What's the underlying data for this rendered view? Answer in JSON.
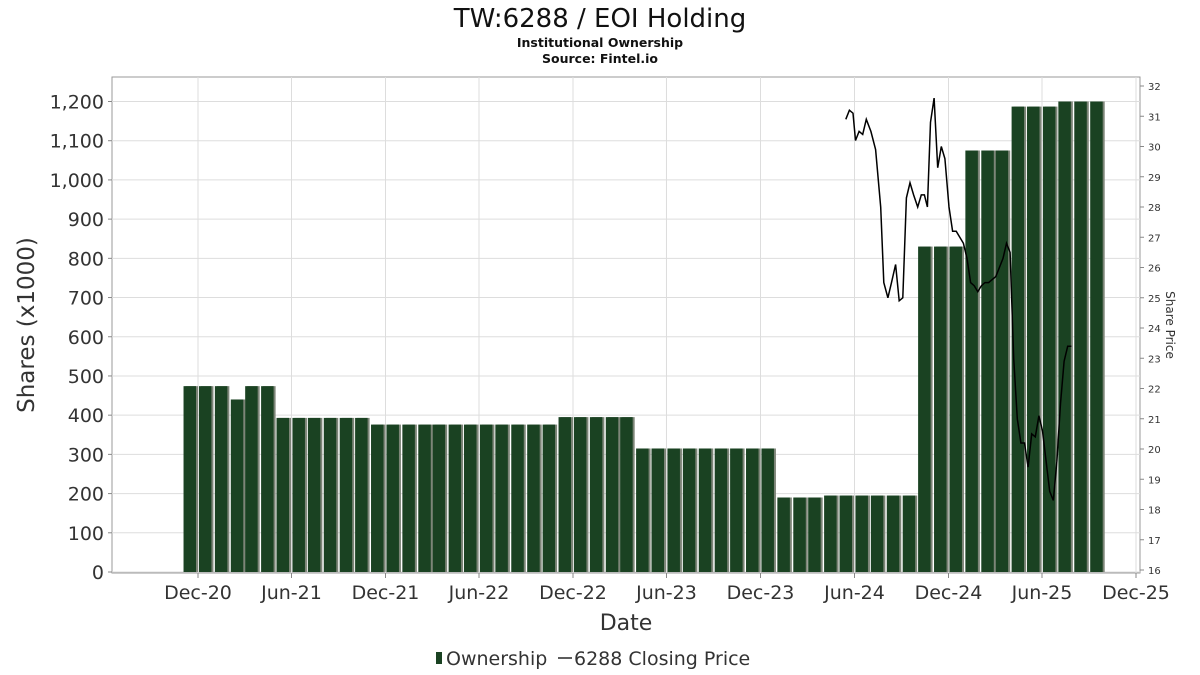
{
  "header": {
    "title": "TW:6288 / EOI Holding",
    "subtitle": "Institutional Ownership",
    "source": "Source: Fintel.io"
  },
  "legend": {
    "ownership_label": "Ownership",
    "price_label": "6288 Closing Price"
  },
  "chart_data": {
    "type": "bar",
    "title": "TW:6288 / EOI Holding",
    "subtitle": "Institutional Ownership",
    "xlabel": "Date",
    "ylabel": "Shares (x1000)",
    "y2label": "Share Price",
    "ylim": [
      0,
      1250
    ],
    "y2lim": [
      15.9,
      32.3
    ],
    "grid": true,
    "legend_position": "bottom",
    "x_tick_labels": [
      "Dec-20",
      "Jun-21",
      "Dec-21",
      "Jun-22",
      "Dec-22",
      "Jun-23",
      "Dec-23",
      "Jun-24",
      "Dec-24",
      "Jun-25",
      "Dec-25"
    ],
    "y_tick_labels": [
      "0",
      "100",
      "200",
      "300",
      "400",
      "500",
      "600",
      "700",
      "800",
      "900",
      "1,000",
      "1,100",
      "1,200"
    ],
    "y2_tick_labels": [
      "16",
      "17",
      "18",
      "19",
      "20",
      "21",
      "22",
      "23",
      "24",
      "25",
      "26",
      "27",
      "28",
      "29",
      "30",
      "31",
      "32"
    ],
    "colors": {
      "bar": "#1a4222",
      "bar_shadow": "#7d8578",
      "line": "#000000",
      "grid": "#dddddd"
    },
    "series": [
      {
        "name": "Ownership",
        "kind": "bar",
        "x": [
          "2020-11-15",
          "2020-12-15",
          "2021-01-15",
          "2021-02-15",
          "2021-03-15",
          "2021-04-15",
          "2021-05-15",
          "2021-06-15",
          "2021-07-15",
          "2021-08-15",
          "2021-09-15",
          "2021-10-15",
          "2021-11-15",
          "2021-12-15",
          "2022-01-15",
          "2022-02-15",
          "2022-03-15",
          "2022-04-15",
          "2022-05-15",
          "2022-06-15",
          "2022-07-15",
          "2022-08-15",
          "2022-09-15",
          "2022-10-15",
          "2022-11-15",
          "2022-12-15",
          "2023-01-15",
          "2023-02-15",
          "2023-03-15",
          "2023-04-15",
          "2023-05-15",
          "2023-06-15",
          "2023-07-15",
          "2023-08-15",
          "2023-09-15",
          "2023-10-15",
          "2023-11-15",
          "2023-12-15",
          "2024-01-15",
          "2024-02-15",
          "2024-03-15",
          "2024-04-15",
          "2024-05-15",
          "2024-06-15",
          "2024-07-15",
          "2024-08-15",
          "2024-09-15",
          "2024-10-15",
          "2024-11-15",
          "2024-12-15",
          "2025-01-15",
          "2025-02-15",
          "2025-03-15",
          "2025-04-15",
          "2025-05-15",
          "2025-06-15",
          "2025-07-15",
          "2025-08-15",
          "2025-09-15"
        ],
        "values": [
          474,
          474,
          474,
          440,
          474,
          474,
          393,
          393,
          393,
          393,
          393,
          393,
          376,
          376,
          376,
          376,
          376,
          376,
          376,
          376,
          376,
          376,
          376,
          376,
          395,
          395,
          395,
          395,
          395,
          315,
          315,
          315,
          315,
          315,
          315,
          315,
          315,
          315,
          190,
          190,
          190,
          195,
          195,
          195,
          195,
          195,
          195,
          830,
          830,
          830,
          1075,
          1075,
          1075,
          1187,
          1187,
          1187,
          1200,
          1200,
          1200
        ]
      },
      {
        "name": "6288 Closing Price",
        "kind": "line",
        "x": [
          "2024-05-15",
          "2024-05-22",
          "2024-05-29",
          "2024-06-03",
          "2024-06-10",
          "2024-06-17",
          "2024-06-24",
          "2024-07-03",
          "2024-07-12",
          "2024-07-22",
          "2024-07-28",
          "2024-08-05",
          "2024-08-12",
          "2024-08-20",
          "2024-08-27",
          "2024-09-03",
          "2024-09-10",
          "2024-09-17",
          "2024-09-24",
          "2024-10-02",
          "2024-10-09",
          "2024-10-15",
          "2024-10-21",
          "2024-10-27",
          "2024-11-03",
          "2024-11-10",
          "2024-11-17",
          "2024-11-24",
          "2024-12-02",
          "2024-12-09",
          "2024-12-16",
          "2024-12-23",
          "2024-12-30",
          "2025-01-06",
          "2025-01-13",
          "2025-01-20",
          "2025-01-27",
          "2025-02-03",
          "2025-02-10",
          "2025-02-17",
          "2025-02-24",
          "2025-03-03",
          "2025-03-10",
          "2025-03-17",
          "2025-03-24",
          "2025-03-31",
          "2025-04-07",
          "2025-04-14",
          "2025-04-21",
          "2025-04-28",
          "2025-05-05",
          "2025-05-12",
          "2025-05-19",
          "2025-05-26",
          "2025-06-02",
          "2025-06-09",
          "2025-06-16",
          "2025-06-23",
          "2025-06-30",
          "2025-07-07",
          "2025-07-14",
          "2025-07-21",
          "2025-07-28"
        ],
        "values": [
          30.9,
          31.2,
          31.1,
          30.2,
          30.5,
          30.4,
          30.9,
          30.5,
          29.9,
          28.0,
          25.5,
          25.0,
          25.5,
          26.1,
          24.9,
          25.0,
          28.3,
          28.8,
          28.4,
          28.0,
          28.4,
          28.4,
          28.0,
          30.8,
          31.6,
          29.3,
          30.0,
          29.6,
          28.0,
          27.2,
          27.2,
          27.0,
          26.8,
          26.3,
          25.5,
          25.4,
          25.2,
          25.4,
          25.5,
          25.5,
          25.6,
          25.7,
          26.0,
          26.3,
          26.8,
          26.5,
          23.0,
          21.0,
          20.2,
          20.2,
          19.4,
          20.5,
          20.4,
          21.1,
          20.6,
          19.6,
          18.6,
          18.3,
          19.6,
          21.5,
          22.9,
          23.4,
          23.4
        ]
      }
    ]
  }
}
